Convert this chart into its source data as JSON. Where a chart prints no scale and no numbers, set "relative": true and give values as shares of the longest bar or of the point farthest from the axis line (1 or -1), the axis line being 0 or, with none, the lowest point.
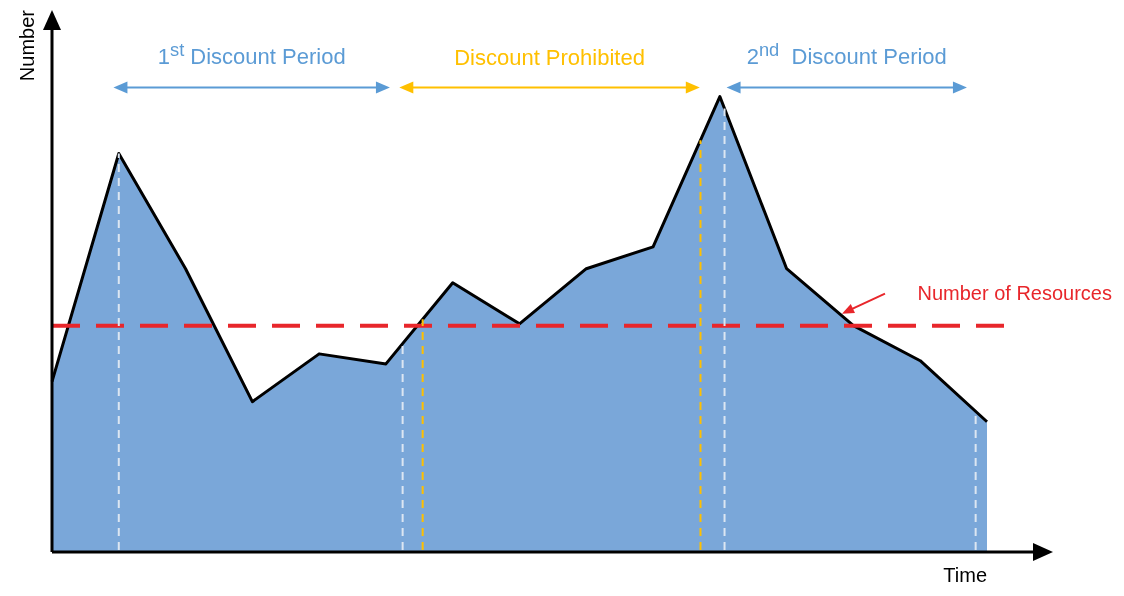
{
  "chart_data": {
    "type": "area",
    "relative": true,
    "xlabel": "Time",
    "ylabel": "Number",
    "marker": "none",
    "categories": [
      null,
      null,
      null,
      null,
      null,
      null,
      null,
      null,
      null,
      null,
      null,
      null,
      null,
      null,
      null
    ],
    "series": [
      {
        "color": "#7aa7d9",
        "values": [
          0.374,
          0.875,
          0.622,
          0.33,
          0.435,
          0.413,
          0.591,
          0.501,
          0.622,
          0.67,
          1,
          0.622,
          0.497,
          0.42,
          0.286
        ]
      }
    ],
    "ref_lines": [
      {
        "axis": "y",
        "value": 0.497,
        "label": "Number of Resources",
        "color": "#e8262b",
        "line_style": "dashed"
      }
    ],
    "annotations": [
      "1$^{st}$ Discount Period",
      "Discount Prohibited",
      "2$^{nd}$  Discount Period"
    ]
  }
}
